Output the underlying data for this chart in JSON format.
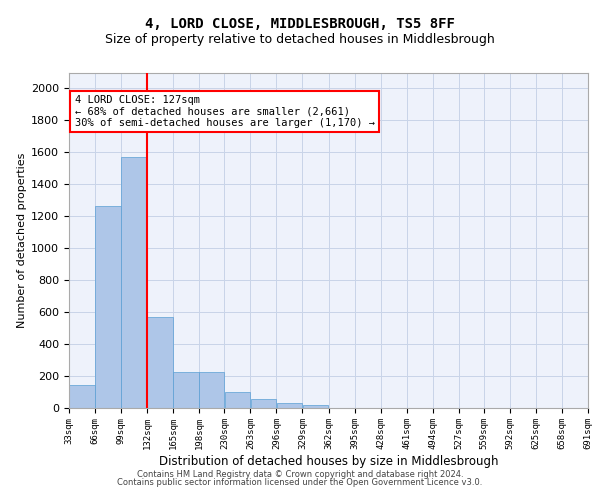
{
  "title": "4, LORD CLOSE, MIDDLESBROUGH, TS5 8FF",
  "subtitle": "Size of property relative to detached houses in Middlesbrough",
  "xlabel": "Distribution of detached houses by size in Middlesbrough",
  "ylabel": "Number of detached properties",
  "bar_color": "#aec6e8",
  "bar_edge_color": "#5a9fd4",
  "vline_color": "red",
  "annotation_text": "4 LORD CLOSE: 127sqm\n← 68% of detached houses are smaller (2,661)\n30% of semi-detached houses are larger (1,170) →",
  "annotation_box_color": "white",
  "annotation_box_edge": "red",
  "bins": [
    33,
    66,
    99,
    132,
    165,
    198,
    230,
    263,
    296,
    329,
    362,
    395,
    428,
    461,
    494,
    527,
    559,
    592,
    625,
    658,
    691
  ],
  "bar_heights": [
    140,
    1265,
    1570,
    565,
    220,
    220,
    95,
    52,
    28,
    18,
    0,
    0,
    0,
    0,
    0,
    0,
    0,
    0,
    0,
    0
  ],
  "tick_labels": [
    "33sqm",
    "66sqm",
    "99sqm",
    "132sqm",
    "165sqm",
    "198sqm",
    "230sqm",
    "263sqm",
    "296sqm",
    "329sqm",
    "362sqm",
    "395sqm",
    "428sqm",
    "461sqm",
    "494sqm",
    "527sqm",
    "559sqm",
    "592sqm",
    "625sqm",
    "658sqm",
    "691sqm"
  ],
  "ylim": [
    0,
    2100
  ],
  "yticks": [
    0,
    200,
    400,
    600,
    800,
    1000,
    1200,
    1400,
    1600,
    1800,
    2000
  ],
  "footer_line1": "Contains HM Land Registry data © Crown copyright and database right 2024.",
  "footer_line2": "Contains public sector information licensed under the Open Government Licence v3.0.",
  "background_color": "#eef2fb",
  "grid_color": "#c8d4e8",
  "title_fontsize": 10,
  "subtitle_fontsize": 9,
  "ylabel_fontsize": 8,
  "xlabel_fontsize": 8.5,
  "tick_fontsize": 6.5,
  "footer_fontsize": 6,
  "annot_fontsize": 7.5
}
